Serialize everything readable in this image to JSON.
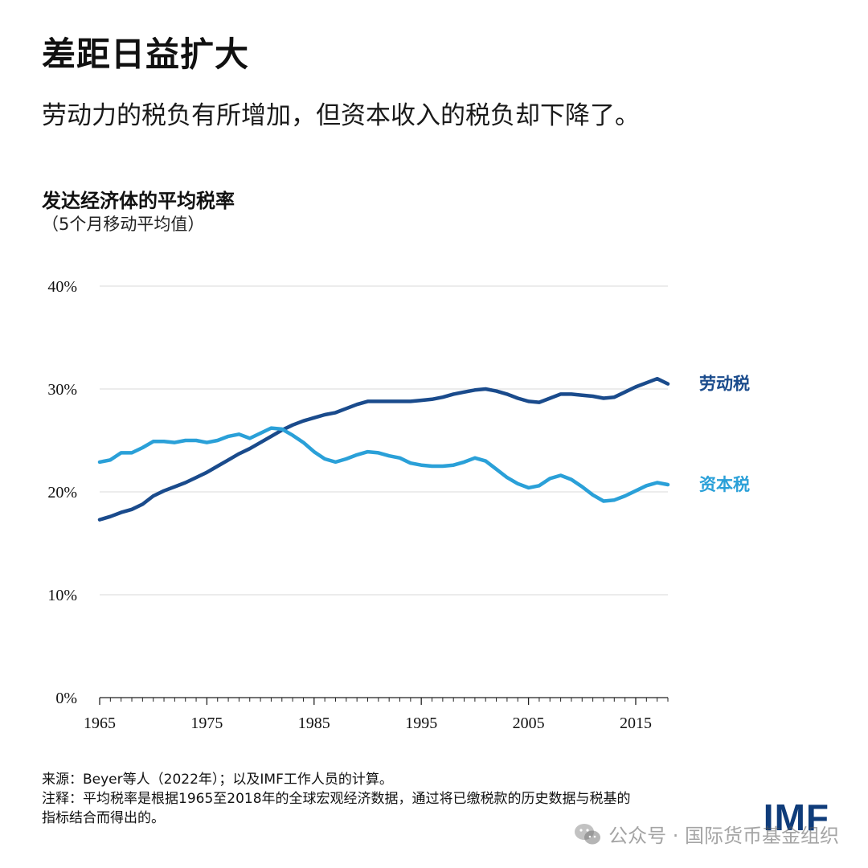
{
  "header": {
    "title": "差距日益扩大",
    "subtitle": "劳动力的税负有所增加，但资本收入的税负却下降了。"
  },
  "chart_data": {
    "type": "line",
    "title": "发达经济体的平均税率",
    "subtitle": "（5个月移动平均值）",
    "xlabel": "",
    "ylabel": "",
    "xlim": [
      1965,
      2018
    ],
    "ylim": [
      0,
      40
    ],
    "x_ticks": [
      1965,
      1975,
      1985,
      1995,
      2005,
      2015
    ],
    "y_ticks": [
      0,
      10,
      20,
      30,
      40
    ],
    "y_tick_labels": [
      "0%",
      "10%",
      "20%",
      "30%",
      "40%"
    ],
    "grid": true,
    "x": [
      1965,
      1966,
      1967,
      1968,
      1969,
      1970,
      1971,
      1972,
      1973,
      1974,
      1975,
      1976,
      1977,
      1978,
      1979,
      1980,
      1981,
      1982,
      1983,
      1984,
      1985,
      1986,
      1987,
      1988,
      1989,
      1990,
      1991,
      1992,
      1993,
      1994,
      1995,
      1996,
      1997,
      1998,
      1999,
      2000,
      2001,
      2002,
      2003,
      2004,
      2005,
      2006,
      2007,
      2008,
      2009,
      2010,
      2011,
      2012,
      2013,
      2014,
      2015,
      2016,
      2017,
      2018
    ],
    "series": [
      {
        "name": "劳动税",
        "color": "#1a4b8c",
        "values": [
          17.3,
          17.6,
          18.0,
          18.3,
          18.8,
          19.6,
          20.1,
          20.5,
          20.9,
          21.4,
          21.9,
          22.5,
          23.1,
          23.7,
          24.2,
          24.8,
          25.4,
          26.0,
          26.5,
          26.9,
          27.2,
          27.5,
          27.7,
          28.1,
          28.5,
          28.8,
          28.8,
          28.8,
          28.8,
          28.8,
          28.9,
          29.0,
          29.2,
          29.5,
          29.7,
          29.9,
          30.0,
          29.8,
          29.5,
          29.1,
          28.8,
          28.7,
          29.1,
          29.5,
          29.5,
          29.4,
          29.3,
          29.1,
          29.2,
          29.7,
          30.2,
          30.6,
          31.0,
          30.5
        ]
      },
      {
        "name": "资本税",
        "color": "#2aa0d8",
        "values": [
          22.9,
          23.1,
          23.8,
          23.8,
          24.3,
          24.9,
          24.9,
          24.8,
          25.0,
          25.0,
          24.8,
          25.0,
          25.4,
          25.6,
          25.2,
          25.7,
          26.2,
          26.1,
          25.5,
          24.8,
          23.9,
          23.2,
          22.9,
          23.2,
          23.6,
          23.9,
          23.8,
          23.5,
          23.3,
          22.8,
          22.6,
          22.5,
          22.5,
          22.6,
          22.9,
          23.3,
          23.0,
          22.2,
          21.4,
          20.8,
          20.4,
          20.6,
          21.3,
          21.6,
          21.2,
          20.5,
          19.7,
          19.1,
          19.2,
          19.6,
          20.1,
          20.6,
          20.9,
          20.7
        ]
      }
    ]
  },
  "footer": {
    "source": "来源：Beyer等人（2022年）；以及IMF工作人员的计算。",
    "note_line1": "注释：平均税率是根据1965至2018年的全球宏观经济数据，通过将已缴税款的历史数据与税基的",
    "note_line2": "指标结合而得出的。",
    "logo_text": "IMF",
    "watermark": "公众号 · 国际货币基金组织"
  }
}
